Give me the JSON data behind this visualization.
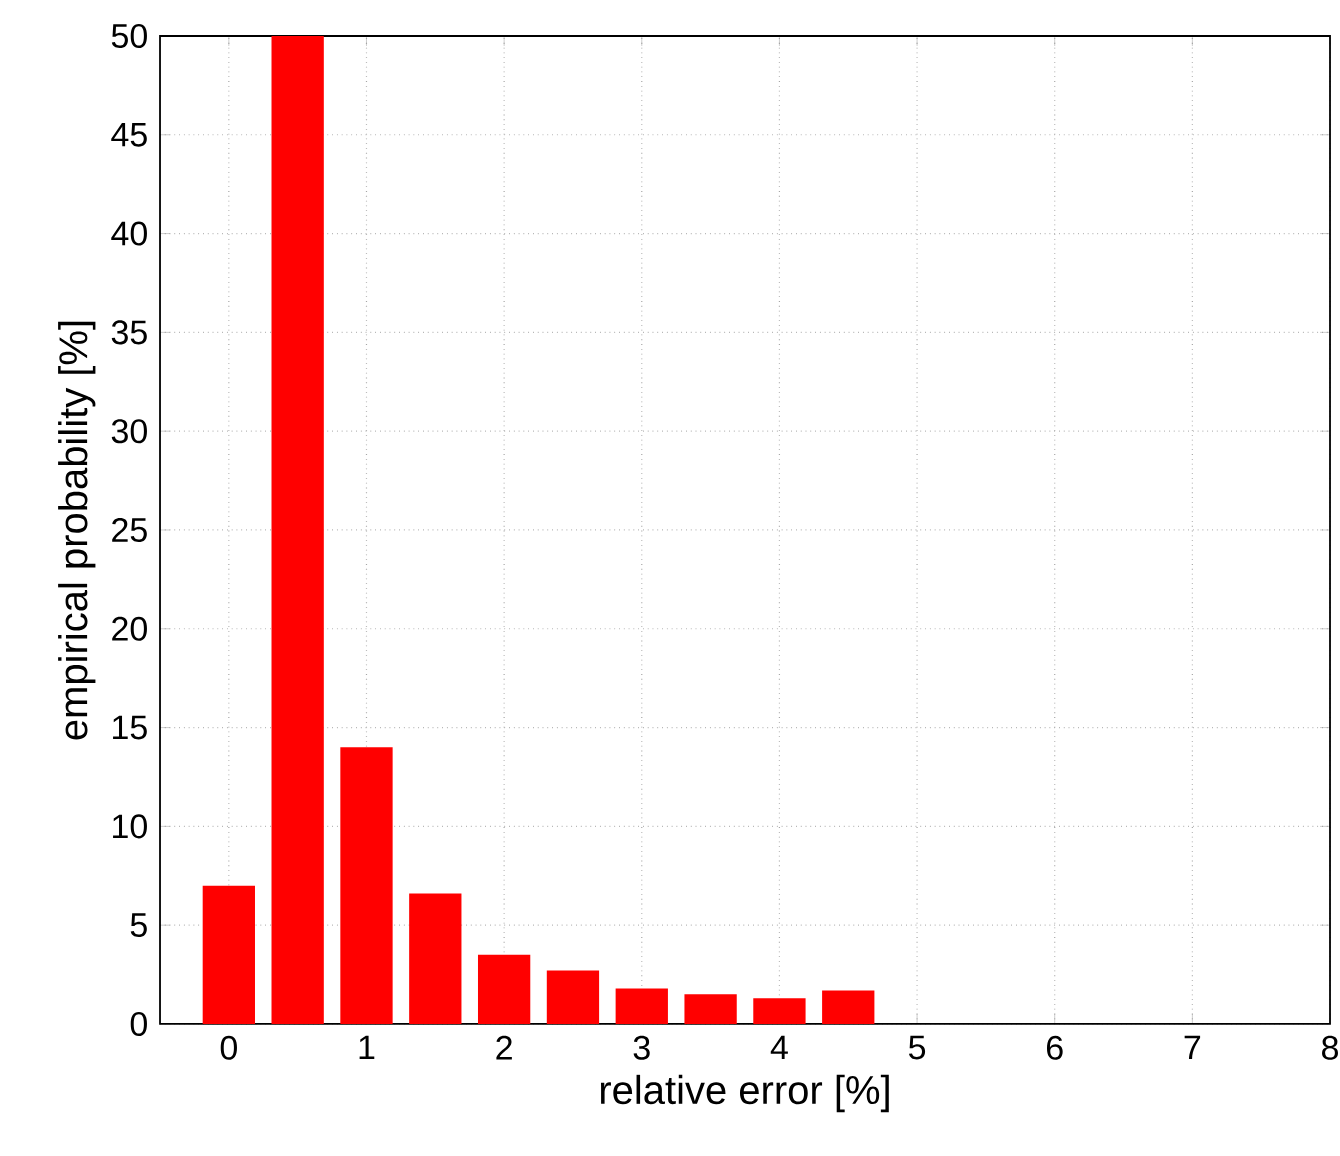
{
  "chart_data": {
    "type": "bar",
    "xlabel": "relative error [%]",
    "ylabel": "empirical probability [%]",
    "x": [
      0,
      0.5,
      1,
      1.5,
      2,
      2.5,
      3,
      3.5,
      4,
      4.5
    ],
    "values": [
      7,
      50,
      14,
      6.6,
      3.5,
      2.7,
      1.8,
      1.5,
      1.3,
      1.7
    ],
    "color": "#ff0000",
    "xlim": [
      -0.5,
      8
    ],
    "xticks": [
      0,
      1,
      2,
      3,
      4,
      5,
      6,
      7,
      8
    ],
    "ylim": [
      0,
      50
    ],
    "yticks": [
      0,
      5,
      10,
      15,
      20,
      25,
      30,
      35,
      40,
      45,
      50
    ],
    "grid": true
  }
}
